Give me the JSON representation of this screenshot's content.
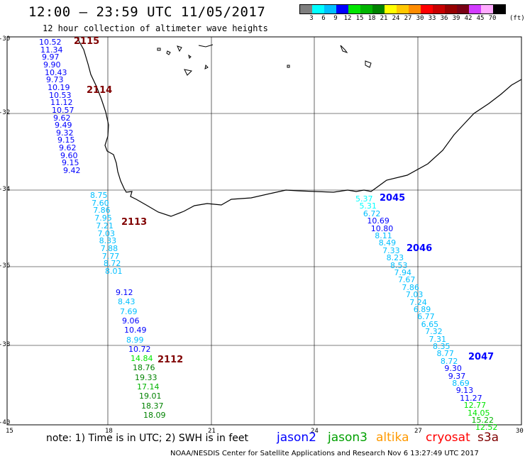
{
  "header": {
    "title": "12:00 – 23:59 UTC 11/05/2017",
    "subtitle": "12 hour collection of altimeter wave heights"
  },
  "colorbar": {
    "colors": [
      "#7f7f7f",
      "#00ffff",
      "#00bfff",
      "#0000ff",
      "#00e600",
      "#00b400",
      "#008200",
      "#ffff00",
      "#ffc800",
      "#ff8c00",
      "#ff0000",
      "#c80000",
      "#960000",
      "#780014",
      "#d23cff",
      "#ffaaff",
      "#000000"
    ],
    "labels": [
      "3",
      "6",
      "9",
      "12",
      "15",
      "18",
      "21",
      "24",
      "27",
      "30",
      "33",
      "36",
      "39",
      "42",
      "45",
      "70"
    ],
    "unit": "(ft)"
  },
  "axes": {
    "lat_ticks": [
      "-30",
      "-32",
      "-34",
      "-36",
      "-38",
      "-40"
    ],
    "lon_ticks": [
      "15",
      "18",
      "21",
      "24",
      "27",
      "30"
    ]
  },
  "tracks": [
    {
      "pass": "2115",
      "color": "#0000ff",
      "values": [
        "10.52",
        "11.34",
        "9.97",
        "9.90",
        "10.43",
        "9.73",
        "10.19",
        "10.53",
        "11.12",
        "10.57",
        "9.62",
        "9.49",
        "9.32",
        "9.15",
        "9.62",
        "9.60",
        "9.15",
        "9.42"
      ]
    },
    {
      "pass": "2113",
      "color": "#00bfff",
      "values": [
        "8.75",
        "7.60",
        "7.86",
        "7.95",
        "7.21",
        "7.03",
        "8.33",
        "7.88",
        "7.77",
        "8.72",
        "8.01"
      ]
    },
    {
      "pass": "2112",
      "color": "#0000ff",
      "values": [
        "9.12",
        "8.43",
        "7.69",
        "9.06",
        "10.49",
        "8.99",
        "10.72",
        "14.84",
        "18.76",
        "19.33",
        "17.14",
        "19.01",
        "18.37",
        "18.09"
      ]
    },
    {
      "pass": "2045",
      "color": "#00bfff",
      "values": [
        "5.37",
        "5.31",
        "6.72",
        "10.69",
        "10.80",
        "8.11",
        "8.49",
        "7.33",
        "8.23",
        "8.53",
        "7.94",
        "7.67",
        "7.86",
        "7.03",
        "7.24",
        "6.89",
        "6.77",
        "6.65",
        "7.32",
        "7.31",
        "8.35",
        "8.77",
        "8.72",
        "9.30",
        "9.37",
        "8.69",
        "9.13",
        "11.27",
        "12.77",
        "14.05",
        "15.22",
        "12.52"
      ]
    }
  ],
  "pass_labels": [
    "2115",
    "2114",
    "2113",
    "2112",
    "2045",
    "2046",
    "2047"
  ],
  "note": "note:  1) Time is in UTC;  2) SWH is in feet",
  "legend": [
    {
      "name": "jason2",
      "color": "#0000ff"
    },
    {
      "name": "jason3",
      "color": "#00a000"
    },
    {
      "name": "altika",
      "color": "#ff9900"
    },
    {
      "name": "cryosat",
      "color": "#ff0000"
    },
    {
      "name": "s3a",
      "color": "#800000"
    }
  ],
  "footer": "NOAA/NESDIS Center for Satellite Applications and Research     Nov  6 13:27:49 UTC 2017"
}
